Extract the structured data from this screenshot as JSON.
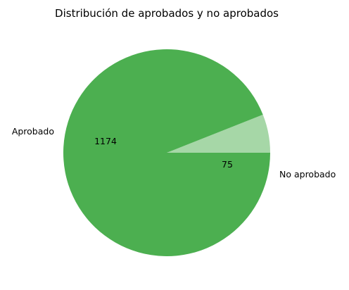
{
  "chart_data": {
    "type": "pie",
    "title": "Distribución de aprobados y no aprobados",
    "categories": [
      "No aprobado",
      "Aprobado"
    ],
    "values": [
      75,
      1174
    ],
    "colors": [
      "#a6d7a7",
      "#4caf50"
    ],
    "start_angle_deg": 0,
    "direction": "counterclockwise",
    "show_values": true
  }
}
